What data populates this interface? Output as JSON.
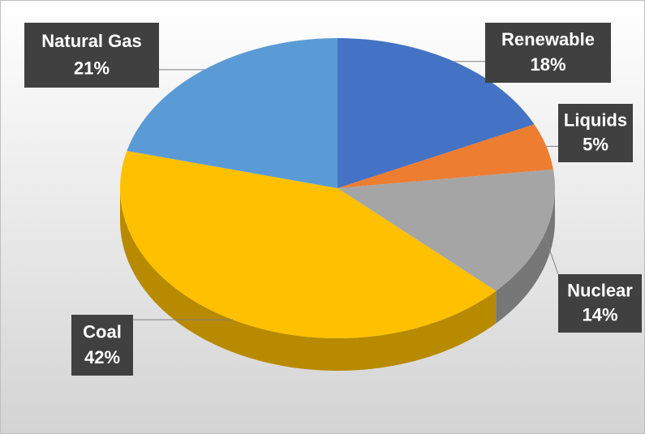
{
  "chart_data": {
    "type": "pie",
    "categories": [
      "Renewable",
      "Liquids",
      "Nuclear",
      "Coal",
      "Natural Gas"
    ],
    "values": [
      18,
      5,
      14,
      42,
      21
    ],
    "value_labels": [
      "18%",
      "5%",
      "14%",
      "42%",
      "21%"
    ],
    "colors": [
      "#4472c4",
      "#ed7d31",
      "#a5a5a5",
      "#ffc000",
      "#5b9bd5"
    ]
  }
}
